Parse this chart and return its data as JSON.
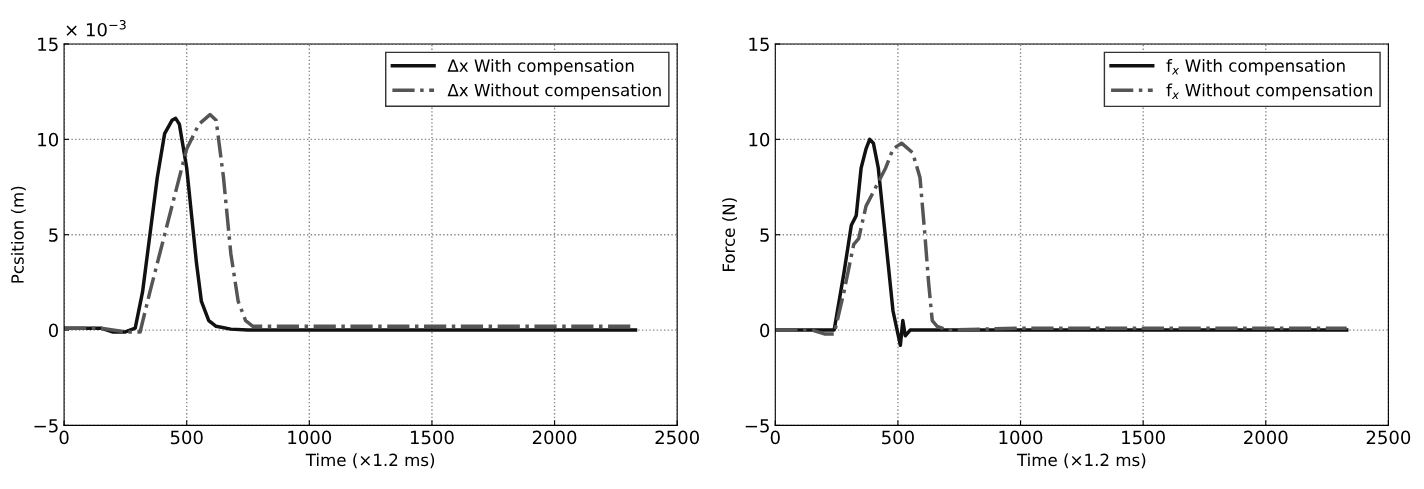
{
  "chart_data": [
    {
      "type": "line",
      "xlabel": "Time (×1.2 ms)",
      "ylabel": "Pcsition (m)",
      "annotations": [
        "× 10$^{−3}$"
      ],
      "xlim": [
        0,
        2500
      ],
      "xticks": [
        0,
        500,
        1000,
        1500,
        2000,
        2500
      ],
      "ylim": [
        -5,
        15
      ],
      "yticks": [
        {
          "value": -5,
          "label": "−5"
        },
        0,
        5,
        10,
        15
      ],
      "grid": true,
      "legend": "top right",
      "series": [
        {
          "name": "Δx With compensation",
          "color": "#111111",
          "line_style": "solid",
          "x": [
            0,
            150,
            200,
            250,
            290,
            320,
            350,
            380,
            410,
            440,
            455,
            470,
            500,
            520,
            540,
            560,
            590,
            620,
            680,
            750,
            1000,
            1500,
            2000,
            2330
          ],
          "values": [
            0.1,
            0.1,
            -0.1,
            -0.1,
            0.1,
            2.0,
            5.0,
            8.0,
            10.3,
            11.0,
            11.1,
            10.8,
            8.5,
            6.0,
            3.5,
            1.5,
            0.5,
            0.2,
            0.05,
            0.0,
            0.0,
            0.0,
            0.0,
            0.0
          ]
        },
        {
          "name": "Δx Without compensation",
          "color": "#555555",
          "line_style": "dashdot",
          "x": [
            0,
            150,
            250,
            310,
            350,
            400,
            450,
            500,
            550,
            595,
            620,
            650,
            680,
            710,
            740,
            770,
            1000,
            1500,
            2000,
            2330
          ],
          "values": [
            0.1,
            0.1,
            -0.1,
            -0.1,
            2.0,
            4.5,
            7.0,
            9.5,
            10.8,
            11.3,
            11.0,
            8.0,
            4.0,
            1.5,
            0.5,
            0.2,
            0.2,
            0.2,
            0.2,
            0.2
          ]
        }
      ]
    },
    {
      "type": "line",
      "xlabel": "Time (×1.2 ms)",
      "ylabel": "Force (N)",
      "xlim": [
        0,
        2500
      ],
      "xticks": [
        0,
        500,
        1000,
        1500,
        2000,
        2500
      ],
      "ylim": [
        -5,
        15
      ],
      "yticks": [
        {
          "value": -5,
          "label": "−5"
        },
        0,
        5,
        10,
        15
      ],
      "grid": true,
      "legend": "top right",
      "series": [
        {
          "name": "f$_{x}$ With compensation",
          "color": "#111111",
          "line_style": "solid",
          "x": [
            0,
            240,
            280,
            310,
            330,
            350,
            370,
            385,
            400,
            420,
            440,
            460,
            480,
            500,
            510,
            520,
            530,
            550,
            1000,
            1500,
            2000,
            2330
          ],
          "values": [
            0.0,
            0.0,
            3.0,
            5.5,
            6.0,
            8.5,
            9.5,
            10.0,
            9.8,
            8.5,
            6.0,
            3.5,
            1.0,
            -0.2,
            -0.8,
            0.5,
            -0.3,
            0.0,
            0.0,
            0.0,
            0.0,
            0.0
          ]
        },
        {
          "name": "f$_{x}$ Without compensation",
          "color": "#555555",
          "line_style": "dashdot",
          "x": [
            0,
            150,
            200,
            240,
            280,
            320,
            340,
            370,
            410,
            450,
            480,
            515,
            560,
            590,
            610,
            625,
            640,
            660,
            700,
            1000,
            1500,
            2000,
            2330
          ],
          "values": [
            0.0,
            0.0,
            -0.2,
            -0.2,
            2.0,
            4.5,
            4.8,
            6.5,
            7.5,
            8.5,
            9.5,
            9.8,
            9.3,
            8.0,
            5.0,
            2.5,
            0.5,
            0.2,
            0.0,
            0.1,
            0.1,
            0.1,
            0.1
          ]
        }
      ]
    }
  ]
}
